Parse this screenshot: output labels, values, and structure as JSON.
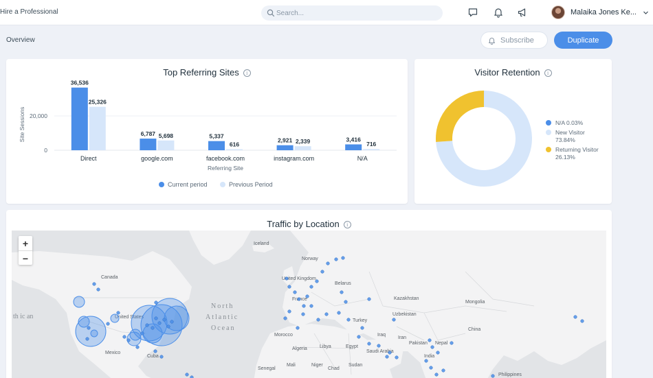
{
  "header": {
    "brand": "Hire a Professional",
    "search_placeholder": "Search...",
    "icons": [
      "chat-icon",
      "bell-icon",
      "megaphone-icon"
    ],
    "user_name": "Malaika Jones Ke..."
  },
  "page": {
    "breadcrumb": "Overview",
    "subscribe_label": "Subscribe",
    "duplicate_label": "Duplicate",
    "accent": "#4b8ee8"
  },
  "referring": {
    "title": "Top Referring Sites",
    "legend_current": "Current period",
    "legend_previous": "Previous Period"
  },
  "retention": {
    "title": "Visitor Retention",
    "legend": [
      {
        "label": "N/A 0.03%",
        "color": "#4b8ee8"
      },
      {
        "label": "New Visitor 73.84%",
        "color": "#d6e6fa"
      },
      {
        "label": "Returning Visitor 26.13%",
        "color": "#f0c22f"
      }
    ]
  },
  "location": {
    "title": "Traffic by Location",
    "zoom_in": "+",
    "zoom_out": "−",
    "map_labels": {
      "iceland": "Iceland",
      "norway": "Norway",
      "canada": "Canada",
      "uk": "United Kingdom",
      "belarus": "Belarus",
      "france": "France",
      "kazakhstan": "Kazakhstan",
      "mongolia": "Mongolia",
      "us": "United States",
      "ocean": "North Atlantic Ocean",
      "turkey": "Turkey",
      "uzbekistan": "Uzbekistan",
      "morocco": "Morocco",
      "iraq": "Iraq",
      "iran": "Iran",
      "china": "China",
      "mexico": "Mexico",
      "algeria": "Algeria",
      "libya": "Libya",
      "egypt": "Egypt",
      "saudi": "Saudi Arabia",
      "pakistan": "Pakistan",
      "nepal": "Nepal",
      "india": "India",
      "cuba": "Cuba",
      "mali": "Mali",
      "niger": "Niger",
      "sudan": "Sudan",
      "senegal": "Senegal",
      "chad": "Chad",
      "philippines": "Philippines",
      "ocean_left": "th ic an"
    }
  },
  "chart_data": [
    {
      "type": "bar",
      "title": "Top Referring Sites",
      "xlabel": "Referring Site",
      "ylabel": "Site Sessions",
      "categories": [
        "Direct",
        "google.com",
        "facebook.com",
        "instagram.com",
        "N/A"
      ],
      "series": [
        {
          "name": "Current period",
          "values": [
            36536,
            6787,
            5337,
            2921,
            3416
          ],
          "color": "#4b8ee8"
        },
        {
          "name": "Previous Period",
          "values": [
            25326,
            5698,
            616,
            2339,
            716
          ],
          "color": "#d6e6fa"
        }
      ],
      "value_labels": {
        "current": [
          "36,536",
          "6,787",
          "5,337",
          "2,921",
          "3,416"
        ],
        "previous": [
          "25,326",
          "5,698",
          "616",
          "2,339",
          "716"
        ]
      },
      "yticks": [
        {
          "value": 0,
          "label": "0"
        },
        {
          "value": 20000,
          "label": "20,000"
        }
      ],
      "ylim": [
        0,
        38000
      ],
      "legend": "bottom"
    },
    {
      "type": "pie",
      "title": "Visitor Retention",
      "slices": [
        {
          "name": "N/A",
          "value": 0.03,
          "color": "#4b8ee8"
        },
        {
          "name": "New Visitor",
          "value": 73.84,
          "color": "#d6e6fa"
        },
        {
          "name": "Returning Visitor",
          "value": 26.13,
          "color": "#f0c22f"
        }
      ],
      "legend": "right"
    }
  ]
}
